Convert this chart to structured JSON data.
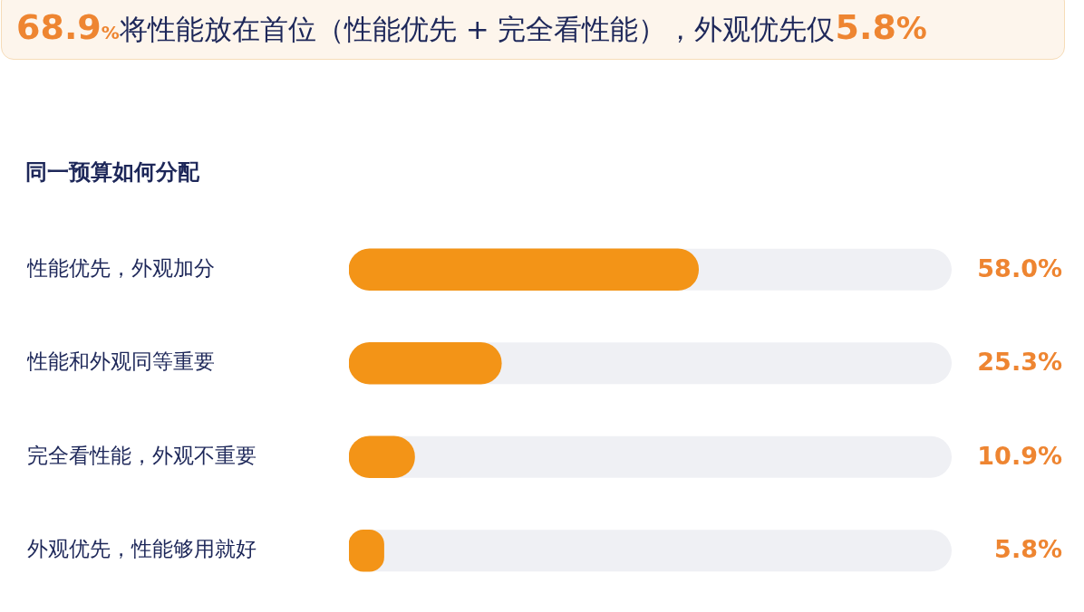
{
  "chart_data": {
    "type": "bar",
    "orientation": "horizontal",
    "title": "同一预算如何分配",
    "annotations": [
      "68.9%将性能放在首位（性能优先 + 完全看性能），外观优先仅5.8%"
    ],
    "categories": [
      "性能优先，外观加分",
      "性能和外观同等重要",
      "完全看性能，外观不重要",
      "外观优先，性能够用就好"
    ],
    "values": [
      58.0,
      25.3,
      10.9,
      5.8
    ],
    "color": "#f39417",
    "value_labels": [
      "58.0%",
      "25.3%",
      "10.9%",
      "5.8%"
    ],
    "xlim": [
      0,
      100
    ],
    "tick_labels": "y"
  }
}
